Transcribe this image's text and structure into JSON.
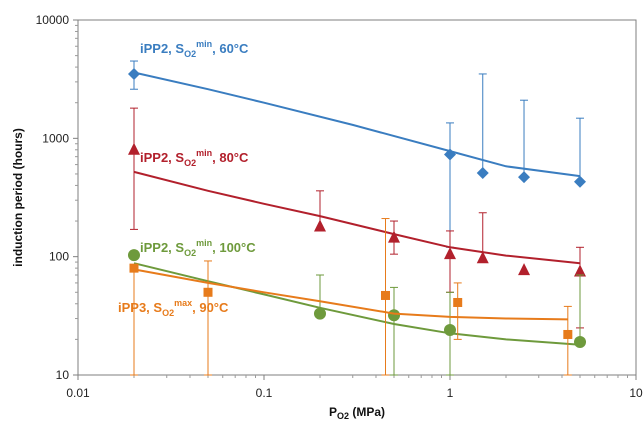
{
  "chart_data": {
    "type": "scatter",
    "xlabel": {
      "base": "P",
      "sub": "O2",
      "unit": " (MPa)"
    },
    "ylabel": "induction period (hours)",
    "x_scale": "log",
    "y_scale": "log",
    "xlim": [
      0.01,
      10
    ],
    "ylim": [
      10,
      10000
    ],
    "x_tick_labels": [
      "0.01",
      "0.1",
      "1",
      "10"
    ],
    "y_tick_labels": [
      "10",
      "100",
      "1000",
      "10000"
    ],
    "grid": false,
    "series": [
      {
        "name": "iPP2, SO2min, 60°C",
        "label_parts": {
          "base": "iPP2, S",
          "sub": "O2",
          "sup": "min",
          "rest": ", 60°C"
        },
        "color": "#3a7dc0",
        "marker": "diamond",
        "points": [
          {
            "x": 0.02,
            "y": 3500,
            "err_up": 4500,
            "err_down": 2600
          },
          {
            "x": 1.0,
            "y": 730,
            "err_up": 1350,
            "err_down": 120
          },
          {
            "x": 1.5,
            "y": 510,
            "err_up": 3500,
            "err_down": null
          },
          {
            "x": 2.5,
            "y": 470,
            "err_up": 2100,
            "err_down": null
          },
          {
            "x": 5.0,
            "y": 430,
            "err_up": 1480,
            "err_down": null
          }
        ],
        "fit": [
          [
            0.02,
            3600
          ],
          [
            0.05,
            2600
          ],
          [
            0.1,
            2000
          ],
          [
            0.3,
            1300
          ],
          [
            1.0,
            780
          ],
          [
            2.0,
            580
          ],
          [
            5.0,
            480
          ]
        ]
      },
      {
        "name": "iPP2, SO2min, 80°C",
        "label_parts": {
          "base": "iPP2, S",
          "sub": "O2",
          "sup": "min",
          "rest": ",  80°C"
        },
        "color": "#b2202c",
        "marker": "triangle",
        "points": [
          {
            "x": 0.02,
            "y": 800,
            "err_up": 1800,
            "err_down": 170
          },
          {
            "x": 0.2,
            "y": 180,
            "err_up": 360,
            "err_down": null
          },
          {
            "x": 0.5,
            "y": 145,
            "err_up": 200,
            "err_down": 105
          },
          {
            "x": 1.0,
            "y": 105,
            "err_up": 165,
            "err_down": 50
          },
          {
            "x": 1.5,
            "y": 97,
            "err_up": 235,
            "err_down": null
          },
          {
            "x": 2.5,
            "y": 77,
            "err_up": null,
            "err_down": null
          },
          {
            "x": 5.0,
            "y": 75,
            "err_up": 120,
            "err_down": 25
          }
        ],
        "fit": [
          [
            0.02,
            520
          ],
          [
            0.05,
            360
          ],
          [
            0.1,
            280
          ],
          [
            0.2,
            220
          ],
          [
            0.5,
            155
          ],
          [
            1.0,
            120
          ],
          [
            2.0,
            102
          ],
          [
            5.0,
            88
          ]
        ]
      },
      {
        "name": "iPP2, SO2min, 100°C",
        "label_parts": {
          "base": "iPP2, S",
          "sub": "O2",
          "sup": "min",
          "rest": ", 100°C"
        },
        "color": "#6e9a3c",
        "marker": "circle",
        "points": [
          {
            "x": 0.02,
            "y": 103,
            "err_up": null,
            "err_down": null
          },
          {
            "x": 0.2,
            "y": 33,
            "err_up": 70,
            "err_down": null
          },
          {
            "x": 0.5,
            "y": 32,
            "err_up": 55,
            "err_down": 10
          },
          {
            "x": 1.0,
            "y": 24,
            "err_up": 50,
            "err_down": 10
          },
          {
            "x": 5.0,
            "y": 19,
            "err_up": 70,
            "err_down": null
          }
        ],
        "fit": [
          [
            0.02,
            88
          ],
          [
            0.05,
            62
          ],
          [
            0.1,
            48
          ],
          [
            0.2,
            37
          ],
          [
            0.5,
            27
          ],
          [
            1.0,
            22.5
          ],
          [
            2.0,
            20
          ],
          [
            5.0,
            18
          ]
        ]
      },
      {
        "name": "iPP3, SO2max, 90°C",
        "label_parts": {
          "base": "iPP3, S",
          "sub": "O2",
          "sup": "max",
          "rest": ", 90°C"
        },
        "color": "#e77b1b",
        "marker": "square",
        "points": [
          {
            "x": 0.02,
            "y": 80,
            "err_up": null,
            "err_down": 10
          },
          {
            "x": 0.05,
            "y": 50,
            "err_up": 92,
            "err_down": 10
          },
          {
            "x": 0.45,
            "y": 47,
            "err_up": 210,
            "err_down": 10
          },
          {
            "x": 1.1,
            "y": 41,
            "err_up": 60,
            "err_down": 20
          },
          {
            "x": 4.3,
            "y": 22,
            "err_up": 38,
            "err_down": 10
          }
        ],
        "fit": [
          [
            0.02,
            78
          ],
          [
            0.05,
            60
          ],
          [
            0.1,
            50
          ],
          [
            0.2,
            42
          ],
          [
            0.5,
            33
          ],
          [
            1.0,
            31
          ],
          [
            2.0,
            30
          ],
          [
            4.3,
            29.5
          ]
        ]
      }
    ]
  }
}
